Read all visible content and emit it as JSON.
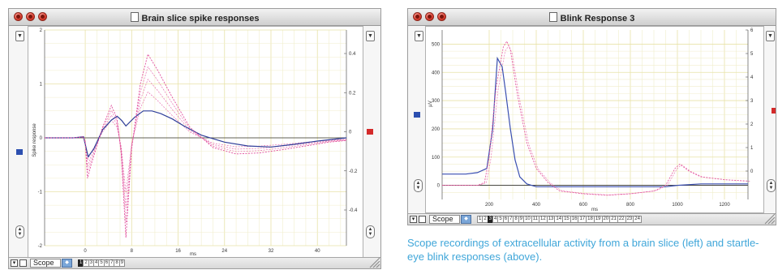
{
  "left_window": {
    "title": "Brain slice spike responses",
    "ylabel_left": "Spike response",
    "xlabel": "ms",
    "scope_label": "Scope",
    "sweeps": [
      "1",
      "2",
      "3",
      "4",
      "5",
      "6",
      "7",
      "8",
      "9"
    ],
    "selected_sweep": "1",
    "colors": {
      "trace_blue": "#2f3f9a",
      "trace_pink": "#e04a9a",
      "grid": "#f0eecc",
      "marker_blue": "#2c4fb0",
      "marker_red": "#d42a2a"
    }
  },
  "right_window": {
    "title": "Blink Response 3",
    "ylabel_left": "µV",
    "xlabel": "ms",
    "scope_label": "Scope",
    "sweeps": [
      "1",
      "2",
      "3",
      "4",
      "5",
      "6",
      "7",
      "8",
      "9",
      "10",
      "11",
      "12",
      "13",
      "14",
      "15",
      "16",
      "17",
      "18",
      "19",
      "20",
      "21",
      "22",
      "23",
      "24"
    ],
    "selected_sweep": "3",
    "colors": {
      "trace_blue": "#3a4fb0",
      "trace_pink": "#e45aa0",
      "grid": "#f0eecc",
      "marker_blue": "#2c4fb0",
      "marker_red": "#d42a2a"
    }
  },
  "chart_data": [
    {
      "type": "line",
      "title": "Brain slice spike responses",
      "xlabel": "ms",
      "ylabel": "Spike response",
      "x_ticks": [
        "0",
        "8",
        "16",
        "24",
        "32",
        "40"
      ],
      "y_ticks_left": [
        "2",
        "1",
        "0",
        "-1",
        "-2"
      ],
      "y_ticks_right": [
        "0.4",
        "0.2",
        "0",
        "-0.2",
        "-0.4"
      ],
      "xlim": [
        -7,
        45
      ],
      "ylim": [
        -2,
        2
      ],
      "grid": true,
      "series": [
        {
          "color": "blue",
          "x": [
            -7,
            -2,
            -0.3,
            0,
            0.5,
            1.5,
            3,
            4.5,
            5.5,
            6.3,
            7,
            8.5,
            10,
            11.5,
            13,
            15,
            17,
            20,
            24,
            28,
            32,
            36,
            40,
            45
          ],
          "y": [
            0,
            0,
            0.02,
            -0.12,
            -0.35,
            -0.2,
            0.15,
            0.33,
            0.4,
            0.32,
            0.22,
            0.38,
            0.5,
            0.5,
            0.45,
            0.35,
            0.22,
            0.05,
            -0.08,
            -0.15,
            -0.17,
            -0.12,
            -0.06,
            0
          ]
        },
        {
          "color": "pink",
          "x": [
            -7,
            -2,
            -0.3,
            0,
            0.4,
            1,
            3,
            4.5,
            5.5,
            6.2,
            7,
            8,
            9.5,
            10.8,
            12.5,
            15,
            18,
            22,
            26,
            30,
            34,
            38,
            42,
            45
          ],
          "y": [
            0,
            0,
            0.02,
            -0.1,
            -0.75,
            -0.5,
            0.2,
            0.6,
            0.35,
            -0.3,
            -1.85,
            -0.2,
            1.0,
            1.55,
            1.25,
            0.75,
            0.2,
            -0.18,
            -0.3,
            -0.28,
            -0.22,
            -0.15,
            -0.08,
            -0.05
          ]
        }
      ]
    },
    {
      "type": "line",
      "title": "Blink Response 3",
      "xlabel": "ms",
      "ylabel": "µV",
      "x_ticks": [
        "200",
        "400",
        "600",
        "800",
        "1000",
        "1200"
      ],
      "y_ticks_left": [
        "500",
        "400",
        "300",
        "200",
        "100",
        "0"
      ],
      "y_ticks_right": [
        "6",
        "5",
        "4",
        "3",
        "2",
        "1",
        "0"
      ],
      "xlim": [
        0,
        1300
      ],
      "ylim": [
        -50,
        550
      ],
      "grid": true,
      "series": [
        {
          "color": "blue",
          "x": [
            0,
            100,
            150,
            190,
            215,
            235,
            255,
            270,
            290,
            310,
            330,
            360,
            400,
            500,
            700,
            900,
            950,
            1000,
            1100,
            1200,
            1300
          ],
          "y": [
            40,
            40,
            45,
            60,
            200,
            450,
            420,
            330,
            200,
            90,
            30,
            5,
            -5,
            -5,
            -5,
            -5,
            -5,
            0,
            5,
            5,
            5
          ]
        },
        {
          "color": "pink",
          "x": [
            0,
            150,
            180,
            200,
            230,
            260,
            275,
            290,
            320,
            360,
            400,
            450,
            500,
            600,
            700,
            800,
            900,
            950,
            990,
            1010,
            1050,
            1100,
            1200,
            1300
          ],
          "y": [
            0,
            0,
            10,
            100,
            350,
            490,
            510,
            480,
            320,
            150,
            60,
            10,
            -20,
            -30,
            -35,
            -30,
            -20,
            0,
            60,
            75,
            50,
            30,
            20,
            15
          ]
        }
      ]
    }
  ],
  "caption": "Scope recordings of extracellular activity from a brain slice (left) and startle-eye blink responses (above)."
}
